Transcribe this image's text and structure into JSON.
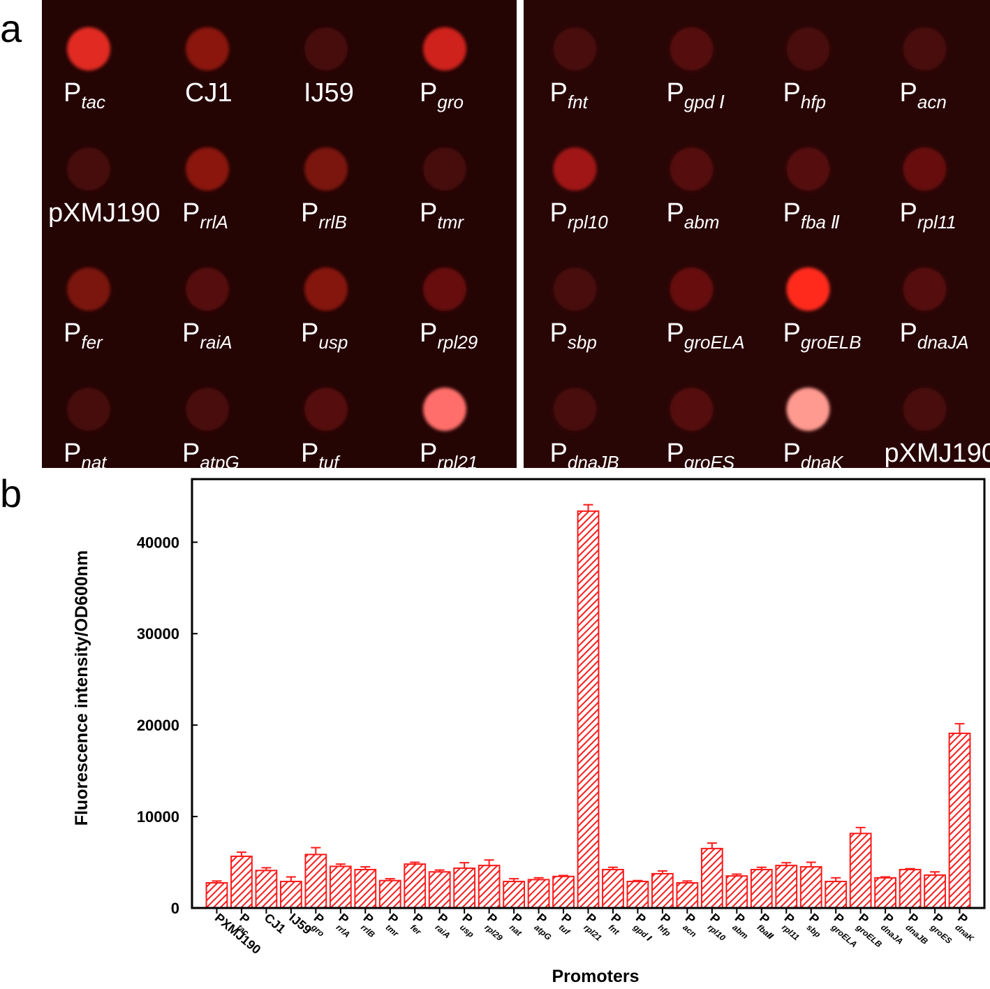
{
  "image": {
    "label": "a",
    "panels": [
      {
        "spots": [
          {
            "main": "P",
            "sub": "tac",
            "color": "#e02a22"
          },
          {
            "main": "CJ1",
            "color": "#8a1510"
          },
          {
            "main": "IJ59",
            "color": "#470808"
          },
          {
            "main": "P",
            "sub": "gro",
            "color": "#cf231c"
          },
          {
            "main": "pXMJ190",
            "color": "#470808"
          },
          {
            "main": "P",
            "sub": "rrlA",
            "color": "#8a1510"
          },
          {
            "main": "P",
            "sub": "rrlB",
            "color": "#7a1210"
          },
          {
            "main": "P",
            "sub": "tmr",
            "color": "#470808"
          },
          {
            "main": "P",
            "sub": "fer",
            "color": "#7a1210"
          },
          {
            "main": "P",
            "sub": "raiA",
            "color": "#560a0a"
          },
          {
            "main": "P",
            "sub": "usp",
            "color": "#851410"
          },
          {
            "main": "P",
            "sub": "rpl29",
            "color": "#680e0e"
          },
          {
            "main": "P",
            "sub": "nat",
            "color": "#470808"
          },
          {
            "main": "P",
            "sub": "atpG",
            "color": "#4a0808"
          },
          {
            "main": "P",
            "sub": "tuf",
            "color": "#560a0a"
          },
          {
            "main": "P",
            "sub": "rpl21",
            "color": "#ff6e6a"
          }
        ]
      },
      {
        "spots": [
          {
            "main": "P",
            "sub": "fnt",
            "color": "#4a0808"
          },
          {
            "main": "P",
            "sub": "gpd Ⅰ",
            "color": "#560a0a"
          },
          {
            "main": "P",
            "sub": "hfp",
            "color": "#4a0808"
          },
          {
            "main": "P",
            "sub": "acn",
            "color": "#4a0808"
          },
          {
            "main": "P",
            "sub": "rpl10",
            "color": "#a01812"
          },
          {
            "main": "P",
            "sub": "abm",
            "color": "#560a0a"
          },
          {
            "main": "P",
            "sub": "fba Ⅱ",
            "color": "#560a0a"
          },
          {
            "main": "P",
            "sub": "rpl11",
            "color": "#680e0e"
          },
          {
            "main": "P",
            "sub": "sbp",
            "color": "#4a0808"
          },
          {
            "main": "P",
            "sub": "groELA",
            "color": "#680e0e"
          },
          {
            "main": "P",
            "sub": "groELB",
            "color": "#ff2a1a"
          },
          {
            "main": "P",
            "sub": "dnaJA",
            "color": "#560a0a"
          },
          {
            "main": "P",
            "sub": "dnaJB",
            "color": "#4a0808"
          },
          {
            "main": "P",
            "sub": "groES",
            "color": "#560a0a"
          },
          {
            "main": "P",
            "sub": "dnaK",
            "color": "#ff9a90"
          },
          {
            "main": "pXMJ190",
            "color": "#4a0808"
          }
        ]
      }
    ]
  },
  "chart_data": {
    "type": "bar",
    "panel_label": "b",
    "x_label": "Promoters",
    "y_label": "Fluorescence intensity/OD600nm",
    "categories": [
      {
        "main": "PXMJ190"
      },
      {
        "main": "P",
        "sub": "tac"
      },
      {
        "main": "CJ1"
      },
      {
        "main": "IJ59"
      },
      {
        "main": "P",
        "sub": "gro"
      },
      {
        "main": "P",
        "sub": "rrlA"
      },
      {
        "main": "P",
        "sub": "rrlB"
      },
      {
        "main": "P",
        "sub": "tmr"
      },
      {
        "main": "P",
        "sub": "fer"
      },
      {
        "main": "P",
        "sub": "raiA"
      },
      {
        "main": "P",
        "sub": "usp"
      },
      {
        "main": "P",
        "sub": "rpl29"
      },
      {
        "main": "P",
        "sub": "nat"
      },
      {
        "main": "P",
        "sub": "atpG"
      },
      {
        "main": "P",
        "sub": "tuf"
      },
      {
        "main": "P",
        "sub": "rpl21"
      },
      {
        "main": "P",
        "sub": "fnt"
      },
      {
        "main": "P",
        "sub": "gpd Ⅰ"
      },
      {
        "main": "P",
        "sub": "hfp"
      },
      {
        "main": "P",
        "sub": "acn"
      },
      {
        "main": "P",
        "sub": "rpl10"
      },
      {
        "main": "P",
        "sub": "abm"
      },
      {
        "main": "P",
        "sub": "fbaⅡ"
      },
      {
        "main": "P",
        "sub": "rpl11"
      },
      {
        "main": "P",
        "sub": "sbp"
      },
      {
        "main": "P",
        "sub": "groELA"
      },
      {
        "main": "P",
        "sub": "groELB"
      },
      {
        "main": "P",
        "sub": "dnaJA"
      },
      {
        "main": "P",
        "sub": "dnaJB"
      },
      {
        "main": "P",
        "sub": "groES"
      },
      {
        "main": "P",
        "sub": "dnaK"
      }
    ],
    "values": [
      2750,
      5650,
      4100,
      2900,
      5850,
      4550,
      4200,
      3000,
      4800,
      3950,
      4350,
      4650,
      2900,
      3100,
      3450,
      43400,
      4200,
      2900,
      3750,
      2750,
      6500,
      3500,
      4200,
      4650,
      4500,
      2900,
      8150,
      3300,
      4200,
      3600,
      19100
    ],
    "errors": [
      200,
      450,
      300,
      500,
      750,
      250,
      300,
      200,
      200,
      200,
      600,
      600,
      300,
      200,
      100,
      700,
      250,
      100,
      300,
      200,
      600,
      200,
      250,
      300,
      500,
      400,
      650,
      100,
      100,
      350,
      1050
    ],
    "color": "#ff1a1a",
    "ylim": [
      0,
      46900
    ],
    "yticks": [
      0,
      10000,
      20000,
      30000,
      40000
    ]
  }
}
